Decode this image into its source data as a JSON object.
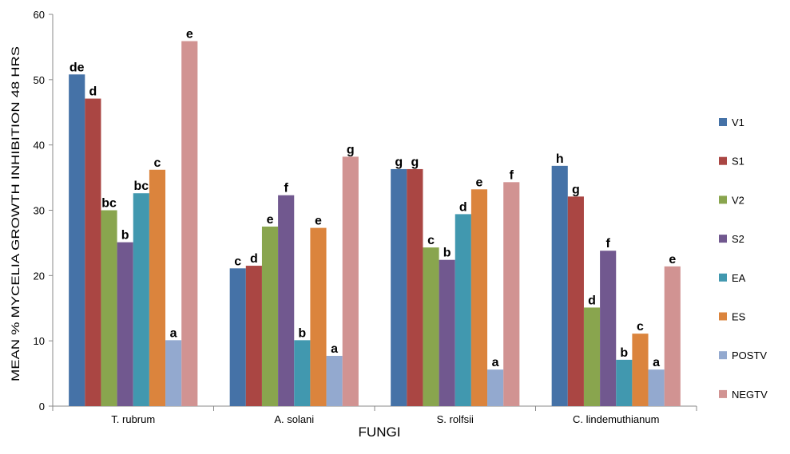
{
  "chart_data": {
    "type": "bar",
    "title": "",
    "xlabel": "FUNGI",
    "ylabel": "MEAN % MYCELIA GROWTH INHIBITION 48 HRS",
    "ylim": [
      0,
      60
    ],
    "yticks": [
      0,
      10,
      20,
      30,
      40,
      50,
      60
    ],
    "grid": false,
    "legend_position": "right",
    "categories": [
      "T. rubrum",
      "A. solani",
      "S. rolfsii",
      "C. lindemuthianum"
    ],
    "series": [
      {
        "name": "V1",
        "color": "#4572A7",
        "values": [
          50.8,
          21.1,
          36.3,
          36.8
        ],
        "labels": [
          "de",
          "c",
          "g",
          "h"
        ]
      },
      {
        "name": "S1",
        "color": "#AA4643",
        "values": [
          47.1,
          21.5,
          36.3,
          32.1
        ],
        "labels": [
          "d",
          "d",
          "g",
          "g"
        ]
      },
      {
        "name": "V2",
        "color": "#89A54E",
        "values": [
          30.0,
          27.5,
          24.3,
          15.1
        ],
        "labels": [
          "bc",
          "e",
          "c",
          "d"
        ]
      },
      {
        "name": "S2",
        "color": "#71588F",
        "values": [
          25.1,
          32.3,
          22.4,
          23.8
        ],
        "labels": [
          "b",
          "f",
          "b",
          "f"
        ]
      },
      {
        "name": "EA",
        "color": "#4198AF",
        "values": [
          32.6,
          10.1,
          29.4,
          7.1
        ],
        "labels": [
          "bc",
          "b",
          "d",
          "b"
        ]
      },
      {
        "name": "ES",
        "color": "#DB843D",
        "values": [
          36.2,
          27.3,
          33.2,
          11.1
        ],
        "labels": [
          "c",
          "e",
          "e",
          "c"
        ]
      },
      {
        "name": "POSTV",
        "color": "#93A9CF",
        "values": [
          10.1,
          7.7,
          5.6,
          5.6
        ],
        "labels": [
          "a",
          "a",
          "a",
          "a"
        ]
      },
      {
        "name": "NEGTV",
        "color": "#D19392",
        "values": [
          55.9,
          38.2,
          34.3,
          21.4
        ],
        "labels": [
          "e",
          "g",
          "f",
          "e"
        ]
      }
    ]
  }
}
